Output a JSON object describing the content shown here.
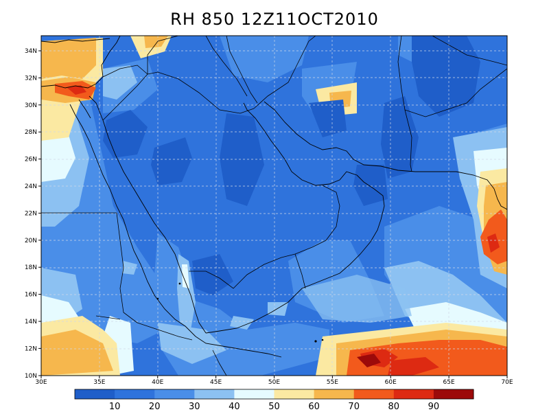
{
  "title": "RH 850  12Z11OCT2010",
  "lat_labels": [
    "34N",
    "32N",
    "30N",
    "28N",
    "26N",
    "24N",
    "22N",
    "20N",
    "18N",
    "16N",
    "14N",
    "12N",
    "10N"
  ],
  "lon_labels": [
    "30E",
    "35E",
    "40E",
    "45E",
    "50E",
    "55E",
    "60E",
    "65E",
    "70E"
  ],
  "colorbar": {
    "levels": [
      "10",
      "20",
      "30",
      "40",
      "50",
      "60",
      "70",
      "80",
      "90"
    ],
    "colors": [
      "#1f5ec9",
      "#2f73dc",
      "#4a8ee8",
      "#8cc1f2",
      "#e6fbff",
      "#fbe9a2",
      "#f6b74d",
      "#f25a1c",
      "#dd2a12",
      "#9c0a0a"
    ]
  }
}
